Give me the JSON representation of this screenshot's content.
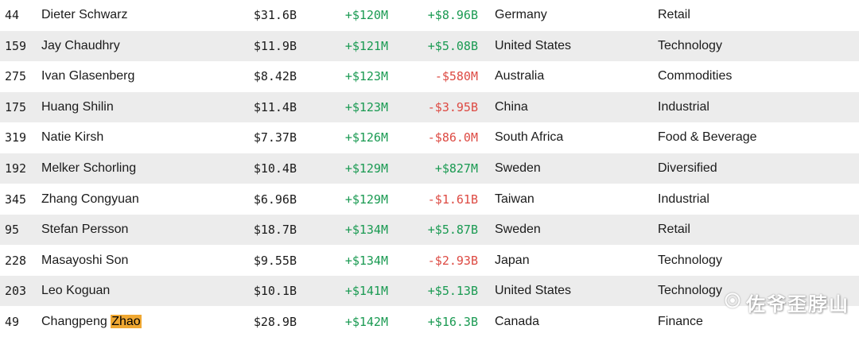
{
  "table": {
    "columns": [
      "rank",
      "name",
      "net_worth",
      "daily_change",
      "ytd_change",
      "country",
      "industry"
    ],
    "rows": [
      {
        "rank": "44",
        "name": "Dieter Schwarz",
        "net_worth": "$31.6B",
        "daily_change": "+$120M",
        "ytd_change": "+$8.96B",
        "country": "Germany",
        "industry": "Retail"
      },
      {
        "rank": "159",
        "name": "Jay Chaudhry",
        "net_worth": "$11.9B",
        "daily_change": "+$121M",
        "ytd_change": "+$5.08B",
        "country": "United States",
        "industry": "Technology"
      },
      {
        "rank": "275",
        "name": "Ivan Glasenberg",
        "net_worth": "$8.42B",
        "daily_change": "+$123M",
        "ytd_change": "-$580M",
        "country": "Australia",
        "industry": "Commodities"
      },
      {
        "rank": "175",
        "name": "Huang Shilin",
        "net_worth": "$11.4B",
        "daily_change": "+$123M",
        "ytd_change": "-$3.95B",
        "country": "China",
        "industry": "Industrial"
      },
      {
        "rank": "319",
        "name": "Natie Kirsh",
        "net_worth": "$7.37B",
        "daily_change": "+$126M",
        "ytd_change": "-$86.0M",
        "country": "South Africa",
        "industry": "Food & Beverage"
      },
      {
        "rank": "192",
        "name": "Melker Schorling",
        "net_worth": "$10.4B",
        "daily_change": "+$129M",
        "ytd_change": "+$827M",
        "country": "Sweden",
        "industry": "Diversified"
      },
      {
        "rank": "345",
        "name": "Zhang Congyuan",
        "net_worth": "$6.96B",
        "daily_change": "+$129M",
        "ytd_change": "-$1.61B",
        "country": "Taiwan",
        "industry": "Industrial"
      },
      {
        "rank": "95",
        "name": "Stefan Persson",
        "net_worth": "$18.7B",
        "daily_change": "+$134M",
        "ytd_change": "+$5.87B",
        "country": "Sweden",
        "industry": "Retail"
      },
      {
        "rank": "228",
        "name": "Masayoshi Son",
        "net_worth": "$9.55B",
        "daily_change": "+$134M",
        "ytd_change": "-$2.93B",
        "country": "Japan",
        "industry": "Technology"
      },
      {
        "rank": "203",
        "name": "Leo Koguan",
        "net_worth": "$10.1B",
        "daily_change": "+$141M",
        "ytd_change": "+$5.13B",
        "country": "United States",
        "industry": "Technology"
      },
      {
        "rank": "49",
        "name": "Changpeng Zhao",
        "highlight": "Zhao",
        "net_worth": "$28.9B",
        "daily_change": "+$142M",
        "ytd_change": "+$16.3B",
        "country": "Canada",
        "industry": "Finance"
      }
    ]
  },
  "watermark": {
    "text": "佐爷歪脖山"
  },
  "colors": {
    "positive": "#1a9a52",
    "negative": "#dd4a43",
    "row_alt": "#ececec",
    "search_highlight": "#f0a832"
  }
}
